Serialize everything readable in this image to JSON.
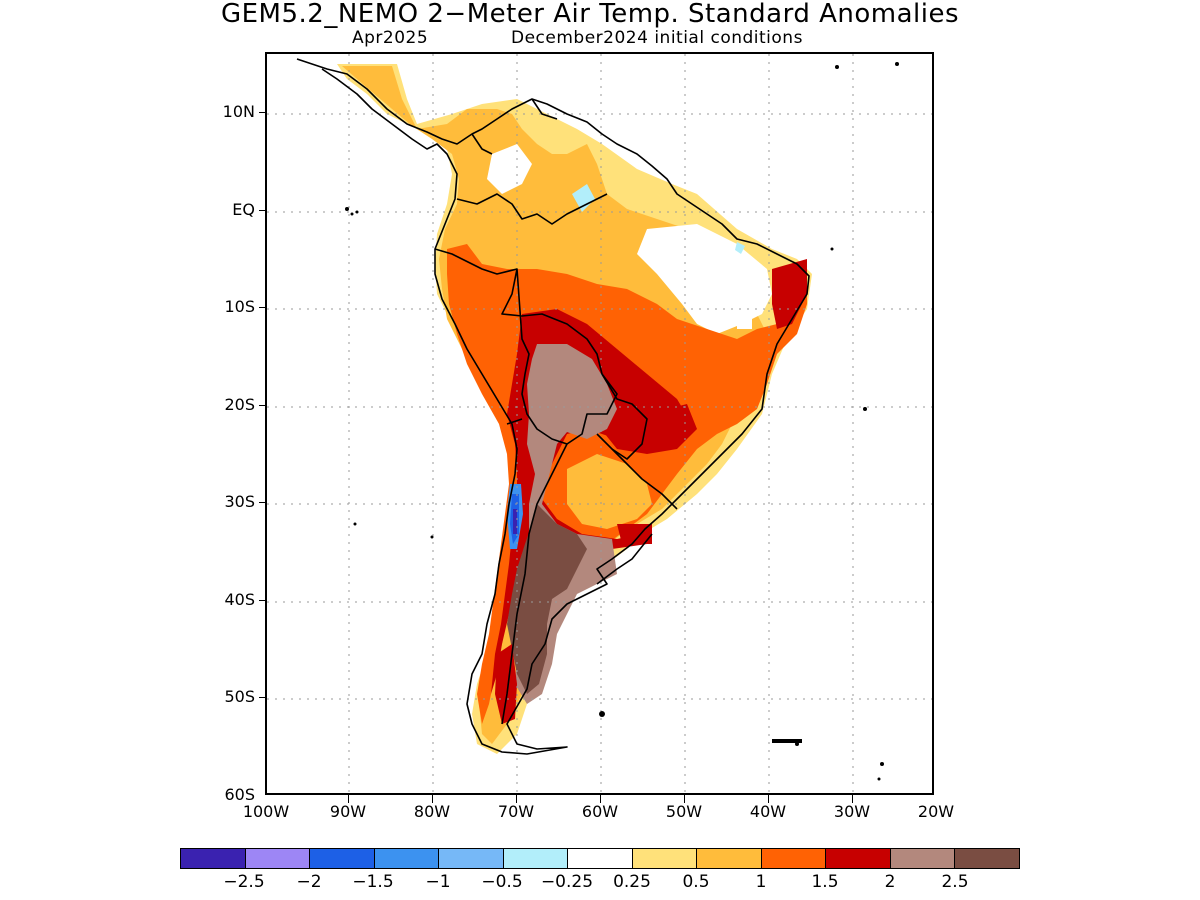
{
  "title": "GEM5.2_NEMO 2−Meter Air Temp. Standard Anomalies",
  "subtitle_left": "Apr2025",
  "subtitle_right": "December2024 initial conditions",
  "lat_labels": [
    "10N",
    "EQ",
    "10S",
    "20S",
    "30S",
    "40S",
    "50S",
    "60S"
  ],
  "lon_labels": [
    "100W",
    "90W",
    "80W",
    "70W",
    "60W",
    "50W",
    "40W",
    "30W",
    "20W"
  ],
  "colorbar": {
    "colors": [
      "#3a22b0",
      "#9d86f5",
      "#1d60e6",
      "#3c92f0",
      "#76b8f7",
      "#b2eefa",
      "#ffffff",
      "#ffe17a",
      "#ffbc3b",
      "#ff6204",
      "#c70000",
      "#b3887d",
      "#7a4d42"
    ],
    "labels": [
      "−2.5",
      "−2",
      "−1.5",
      "−1",
      "−0.5",
      "−0.25",
      "0.25",
      "0.5",
      "1",
      "1.5",
      "2",
      "2.5"
    ]
  },
  "map_colors": {
    "coast": "#000000",
    "grid": "#9a9a9a",
    "anom_0_5": "#ffe17a",
    "anom_1": "#ffbc3b",
    "anom_1_5": "#ff6204",
    "anom_2": "#c70000",
    "anom_2_5": "#b3887d",
    "anom_3": "#7a4d42",
    "anom_neg_0_25": "#b2eefa",
    "anom_neg_1": "#3c92f0",
    "anom_neg_2": "#1d60e6",
    "anom_neg_2_5": "#3a22b0"
  }
}
